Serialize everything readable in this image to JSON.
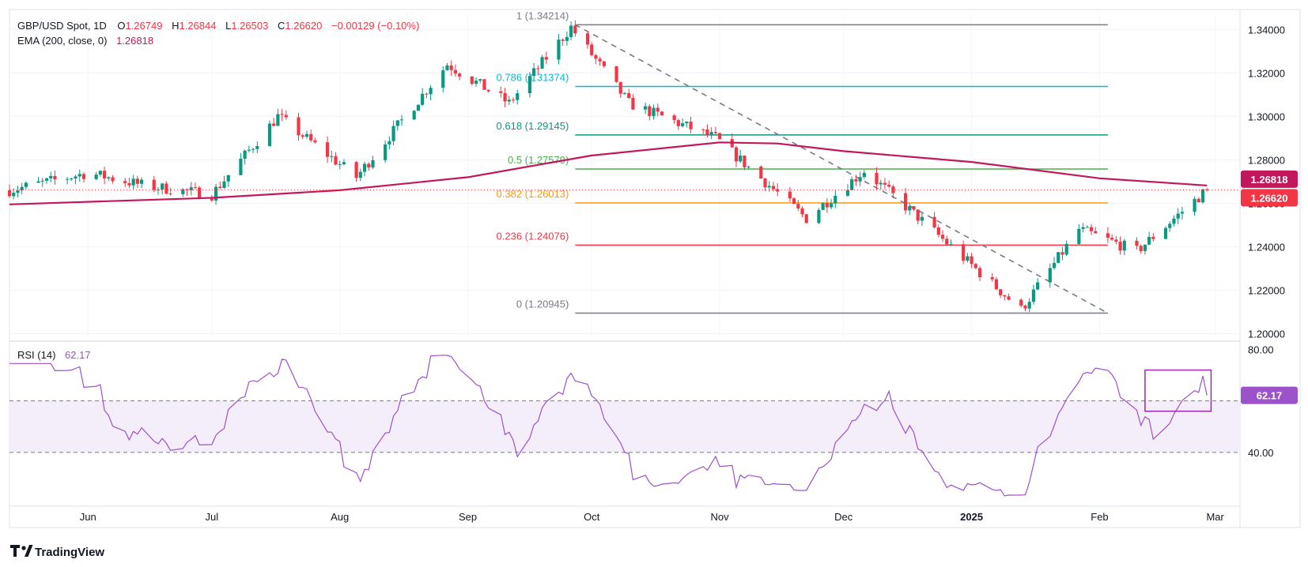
{
  "header": {
    "symbol": "GBP/USD Spot, 1D",
    "o_label": "O",
    "o_value": "1.26749",
    "h_label": "H",
    "h_value": "1.26844",
    "l_label": "L",
    "l_value": "1.26503",
    "c_label": "C",
    "c_value": "1.26620",
    "change": "−0.00129 (−0.10%)",
    "ema_label": "EMA (200, close, 0)",
    "ema_value": "1.26818",
    "rsi_label": "RSI (14)",
    "rsi_value": "62.17"
  },
  "colors": {
    "up": "#089981",
    "down": "#f23645",
    "ema": "#c2185b",
    "rsi": "#9c52c8",
    "rsi_band": "#f3eefa",
    "fib_1": "#787b86",
    "fib_0786": "#00bcd4",
    "fib_0618": "#089981",
    "fib_05": "#4caf50",
    "fib_0382": "#ff9800",
    "fib_0236": "#f23645",
    "fib_0": "#787b86",
    "highlight_box": "#9c27b0"
  },
  "price_badges": {
    "ema": "1.26818",
    "close": "1.26620",
    "rsi": "62.17"
  },
  "chart_data": [
    {
      "type": "candlestick",
      "name": "GBP/USD Spot, 1D",
      "y_ticks": [
        "1.34000",
        "1.32000",
        "1.30000",
        "1.28000",
        "1.26000",
        "1.24000",
        "1.22000",
        "1.20000"
      ],
      "ylim": [
        1.198,
        1.347
      ],
      "x_ticks": [
        "Jun",
        "Jul",
        "Aug",
        "Sep",
        "Oct",
        "Nov",
        "Dec",
        "2025",
        "Feb",
        "Mar"
      ],
      "close_approx": [
        {
          "date": "2024-05-13",
          "close": 1.266
        },
        {
          "date": "2024-06-01",
          "close": 1.274
        },
        {
          "date": "2024-06-15",
          "close": 1.268
        },
        {
          "date": "2024-07-01",
          "close": 1.264
        },
        {
          "date": "2024-07-17",
          "close": 1.3
        },
        {
          "date": "2024-08-01",
          "close": 1.278
        },
        {
          "date": "2024-08-05",
          "close": 1.272
        },
        {
          "date": "2024-08-27",
          "close": 1.324
        },
        {
          "date": "2024-09-11",
          "close": 1.306
        },
        {
          "date": "2024-09-26",
          "close": 1.341
        },
        {
          "date": "2024-10-10",
          "close": 1.306
        },
        {
          "date": "2024-10-31",
          "close": 1.29
        },
        {
          "date": "2024-11-22",
          "close": 1.253
        },
        {
          "date": "2024-12-06",
          "close": 1.275
        },
        {
          "date": "2024-12-20",
          "close": 1.252
        },
        {
          "date": "2025-01-13",
          "close": 1.211
        },
        {
          "date": "2025-01-27",
          "close": 1.248
        },
        {
          "date": "2025-02-10",
          "close": 1.238
        },
        {
          "date": "2025-02-27",
          "close": 1.2662
        }
      ],
      "ema200": {
        "name": "EMA (200, close, 0)",
        "last": 1.26818
      },
      "fibonacci": [
        {
          "level": "1",
          "price": 1.34214,
          "label": "1 (1.34214)"
        },
        {
          "level": "0.786",
          "price": 1.31374,
          "label": "0.786 (1.31374)"
        },
        {
          "level": "0.618",
          "price": 1.29145,
          "label": "0.618 (1.29145)"
        },
        {
          "level": "0.5",
          "price": 1.27579,
          "label": "0.5 (1.27579)"
        },
        {
          "level": "0.382",
          "price": 1.26013,
          "label": "0.382 (1.26013)"
        },
        {
          "level": "0.236",
          "price": 1.24076,
          "label": "0.236 (1.24076)"
        },
        {
          "level": "0",
          "price": 1.20945,
          "label": "0 (1.20945)"
        }
      ],
      "last_price": 1.2662
    },
    {
      "type": "line",
      "name": "RSI (14)",
      "y_ticks": [
        "80.00",
        "40.00"
      ],
      "overbought": 60,
      "oversold": 40,
      "last": 62.17
    }
  ],
  "branding": {
    "logo_text": "TradingView"
  }
}
